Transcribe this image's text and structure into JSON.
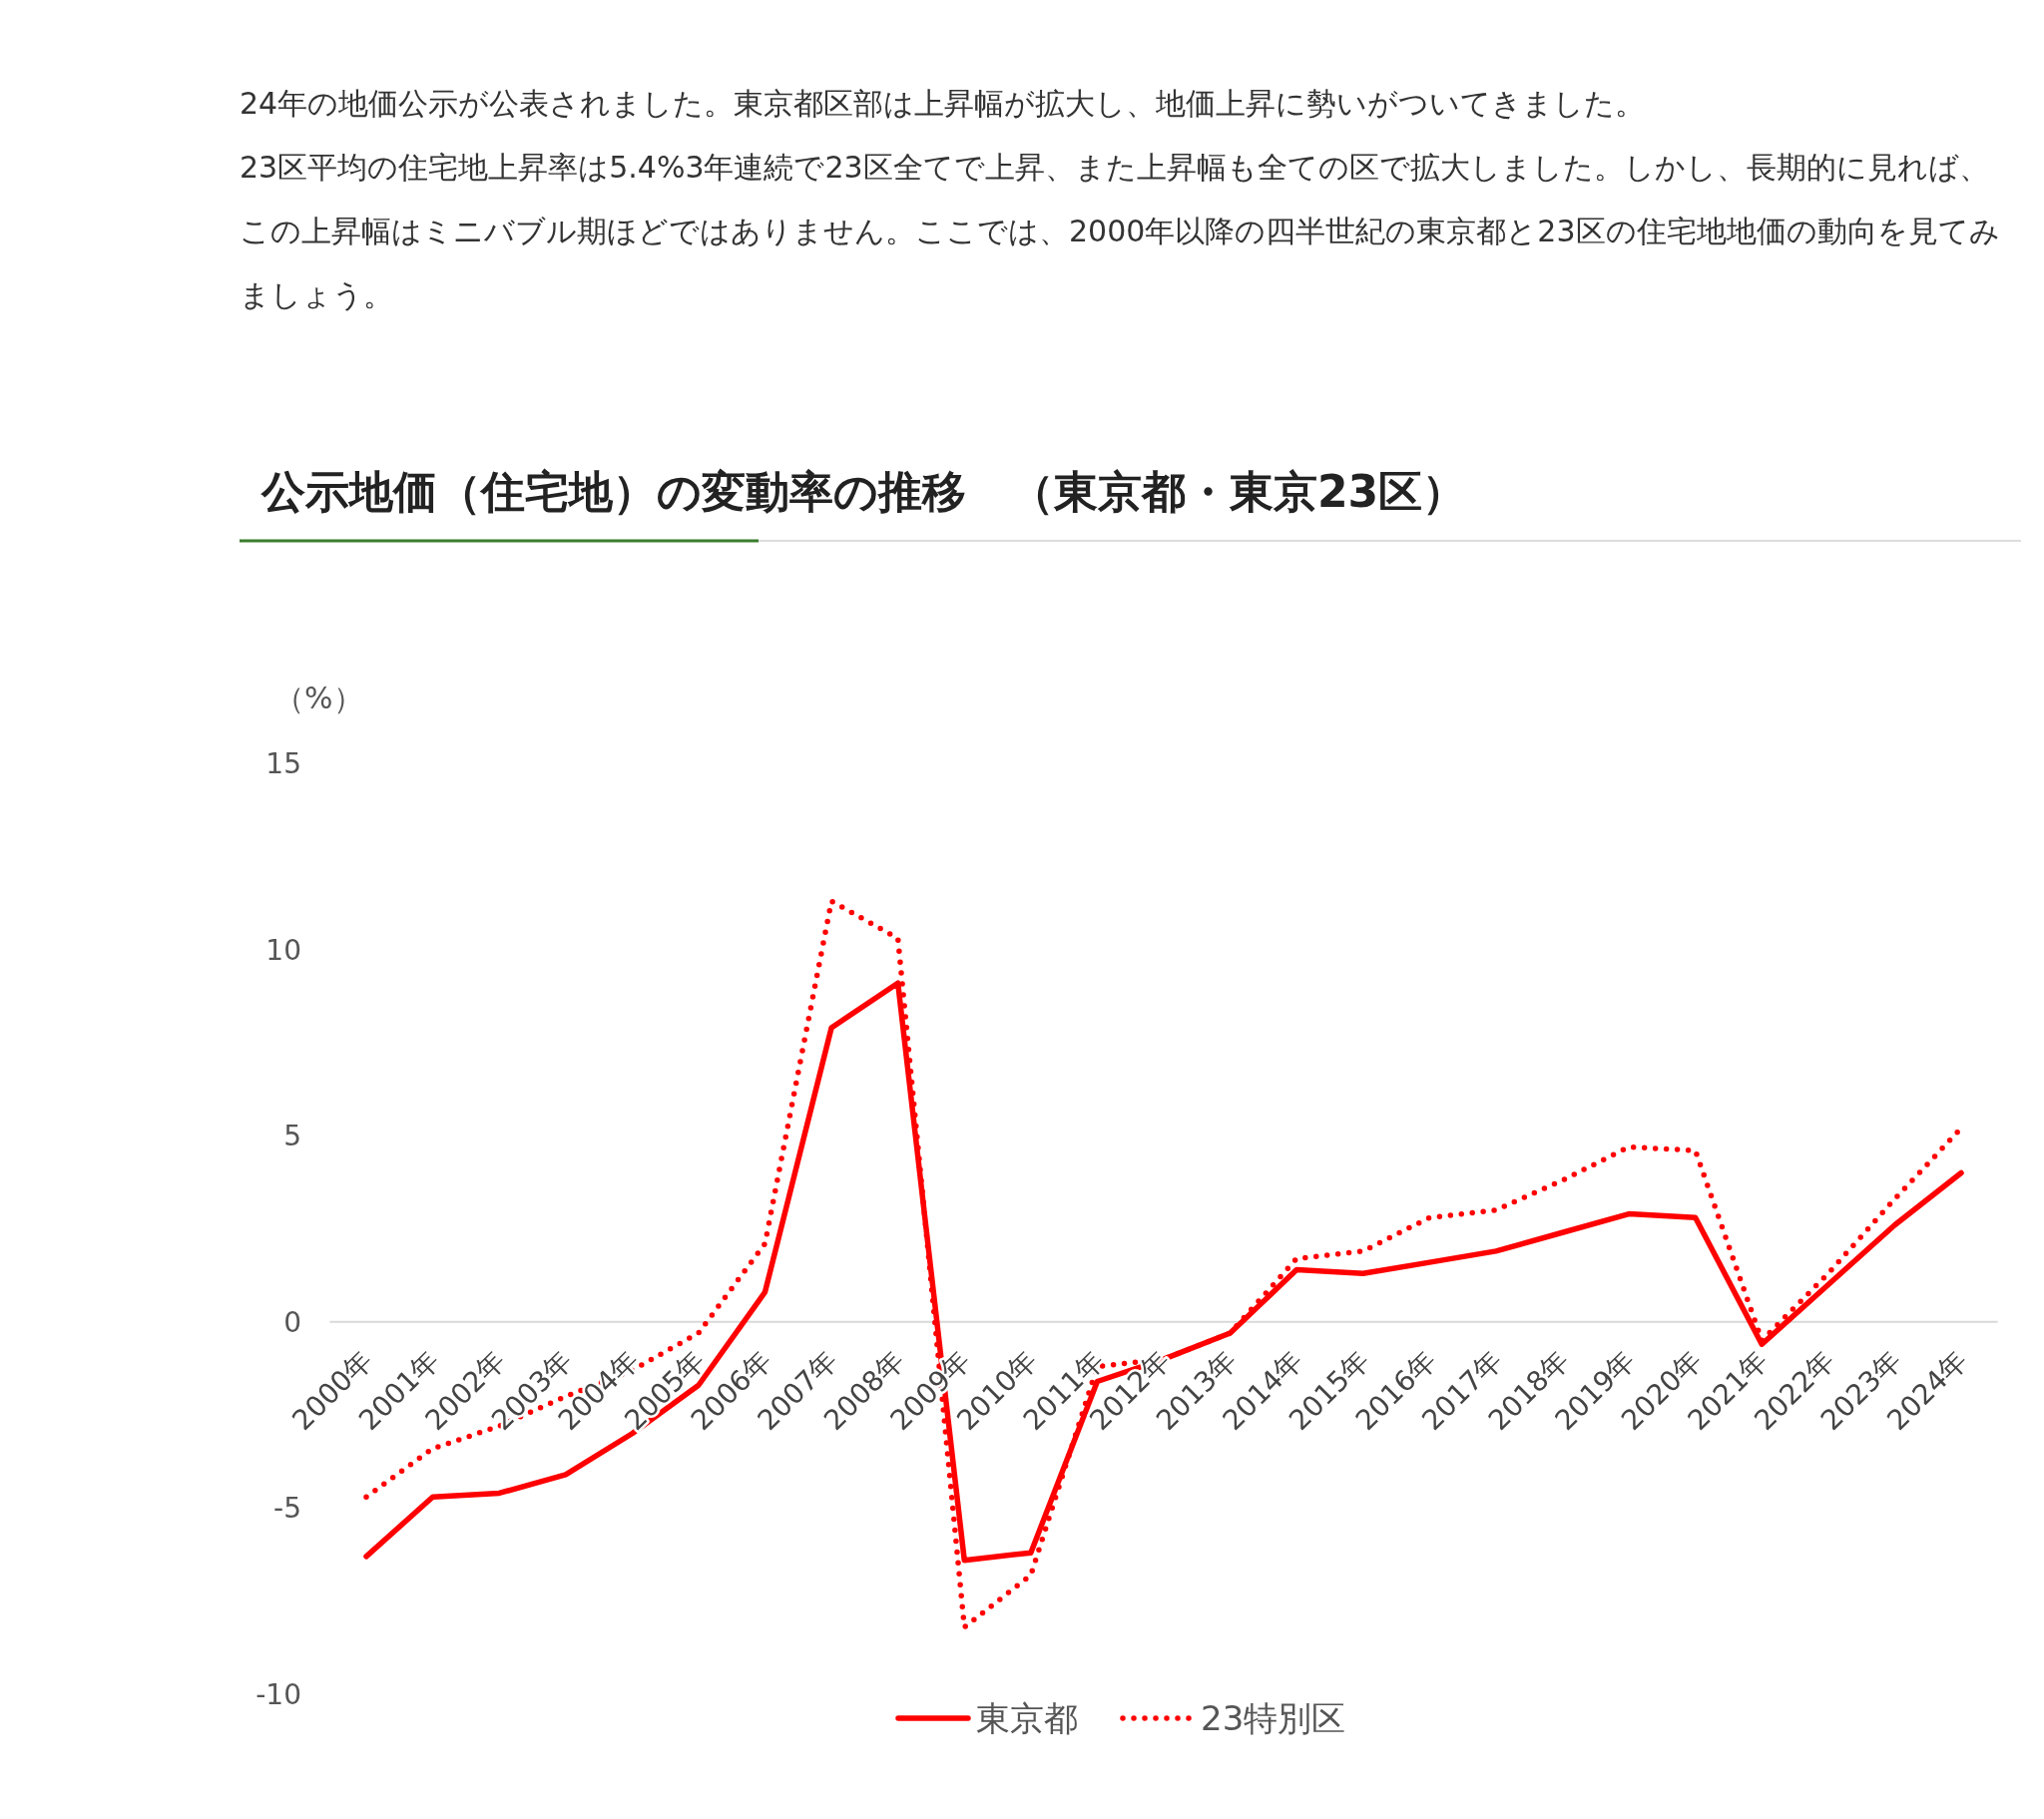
{
  "chart_data": {
    "type": "line",
    "title": "公示地価（住宅地）の変動率の推移　（東京都・東京23区）",
    "ylabel": "（%）",
    "annotations": [
      "24年の地価公示が公表されました。東京都区部は上昇幅が拡大し、地価上昇に勢いがついてきました。\n23区平均の住宅地上昇率は5.4%3年連続で23区全てで上昇、また上昇幅も全ての区で拡大しました。しかし、長期的に見れば、この上昇幅はミニバブル期ほどではありません。ここでは、2000年以降の四半世紀の東京都と23区の住宅地地価の動向を見てみましょう。"
    ],
    "categories": [
      "2000年",
      "2001年",
      "2002年",
      "2003年",
      "2004年",
      "2005年",
      "2006年",
      "2007年",
      "2008年",
      "2009年",
      "2010年",
      "2011年",
      "2012年",
      "2013年",
      "2014年",
      "2015年",
      "2016年",
      "2017年",
      "2018年",
      "2019年",
      "2020年",
      "2021年",
      "2022年",
      "2023年",
      "2024年"
    ],
    "series": [
      {
        "name": "東京都",
        "color": "#ff0000",
        "line_style": "solid",
        "values": [
          -6.3,
          -4.7,
          -4.6,
          -4.1,
          -3.0,
          -1.7,
          0.8,
          7.9,
          9.1,
          -6.4,
          -6.2,
          -1.6,
          -1.0,
          -0.3,
          1.4,
          1.3,
          1.6,
          1.9,
          2.4,
          2.9,
          2.8,
          -0.6,
          1.0,
          2.6,
          4.0
        ]
      },
      {
        "name": "23特別区",
        "color": "#ff0000",
        "line_style": "dotted",
        "values": [
          -4.7,
          -3.4,
          -2.8,
          -2.0,
          -1.3,
          -0.3,
          2.1,
          11.3,
          10.3,
          -8.2,
          -6.8,
          -1.2,
          -1.0,
          -0.3,
          1.7,
          1.9,
          2.8,
          3.0,
          3.8,
          4.7,
          4.6,
          -0.5,
          1.3,
          3.3,
          5.2
        ]
      }
    ],
    "ylim": [
      -10,
      15
    ],
    "yticks": [
      -10,
      -5,
      0,
      5,
      10,
      15
    ],
    "grid": false,
    "legend": "bottom",
    "marker": "none"
  }
}
